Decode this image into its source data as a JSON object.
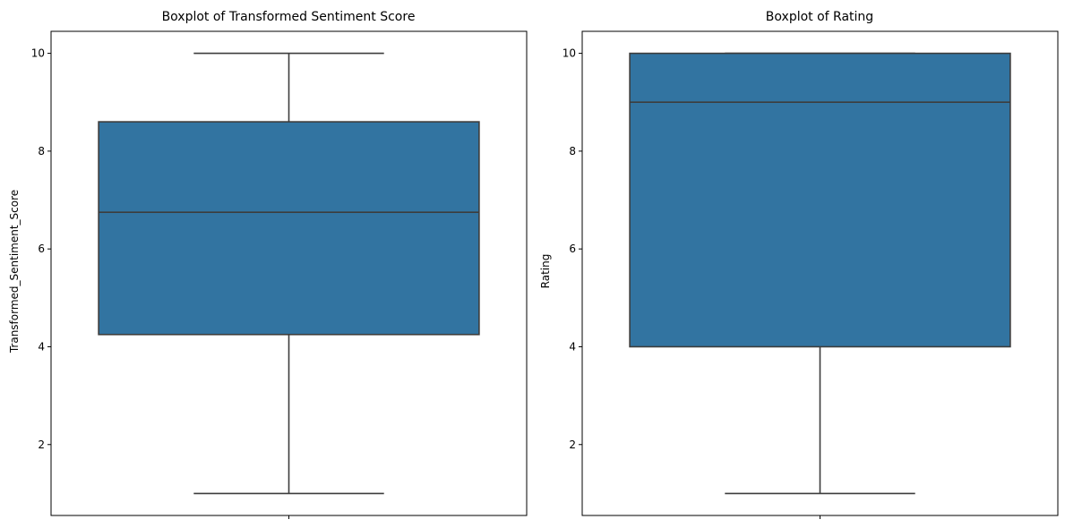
{
  "chart_data": [
    {
      "type": "box",
      "title": "Boxplot of Transformed Sentiment Score",
      "xlabel": "",
      "ylabel": "Transformed_Sentiment_Score",
      "yticks": [
        2,
        4,
        6,
        8,
        10
      ],
      "ylim": [
        0.55,
        10.45
      ],
      "grid": false,
      "box": {
        "min": 1,
        "q1": 4.25,
        "median": 6.75,
        "q3": 8.6,
        "max": 10
      },
      "color": "#3274a1",
      "edge_color": "#3d3d3d"
    },
    {
      "type": "box",
      "title": "Boxplot of Rating",
      "xlabel": "",
      "ylabel": "Rating",
      "yticks": [
        2,
        4,
        6,
        8,
        10
      ],
      "ylim": [
        0.55,
        10.45
      ],
      "grid": false,
      "box": {
        "min": 1,
        "q1": 4,
        "median": 9,
        "q3": 10,
        "max": 10
      },
      "color": "#3274a1",
      "edge_color": "#3d3d3d"
    }
  ]
}
